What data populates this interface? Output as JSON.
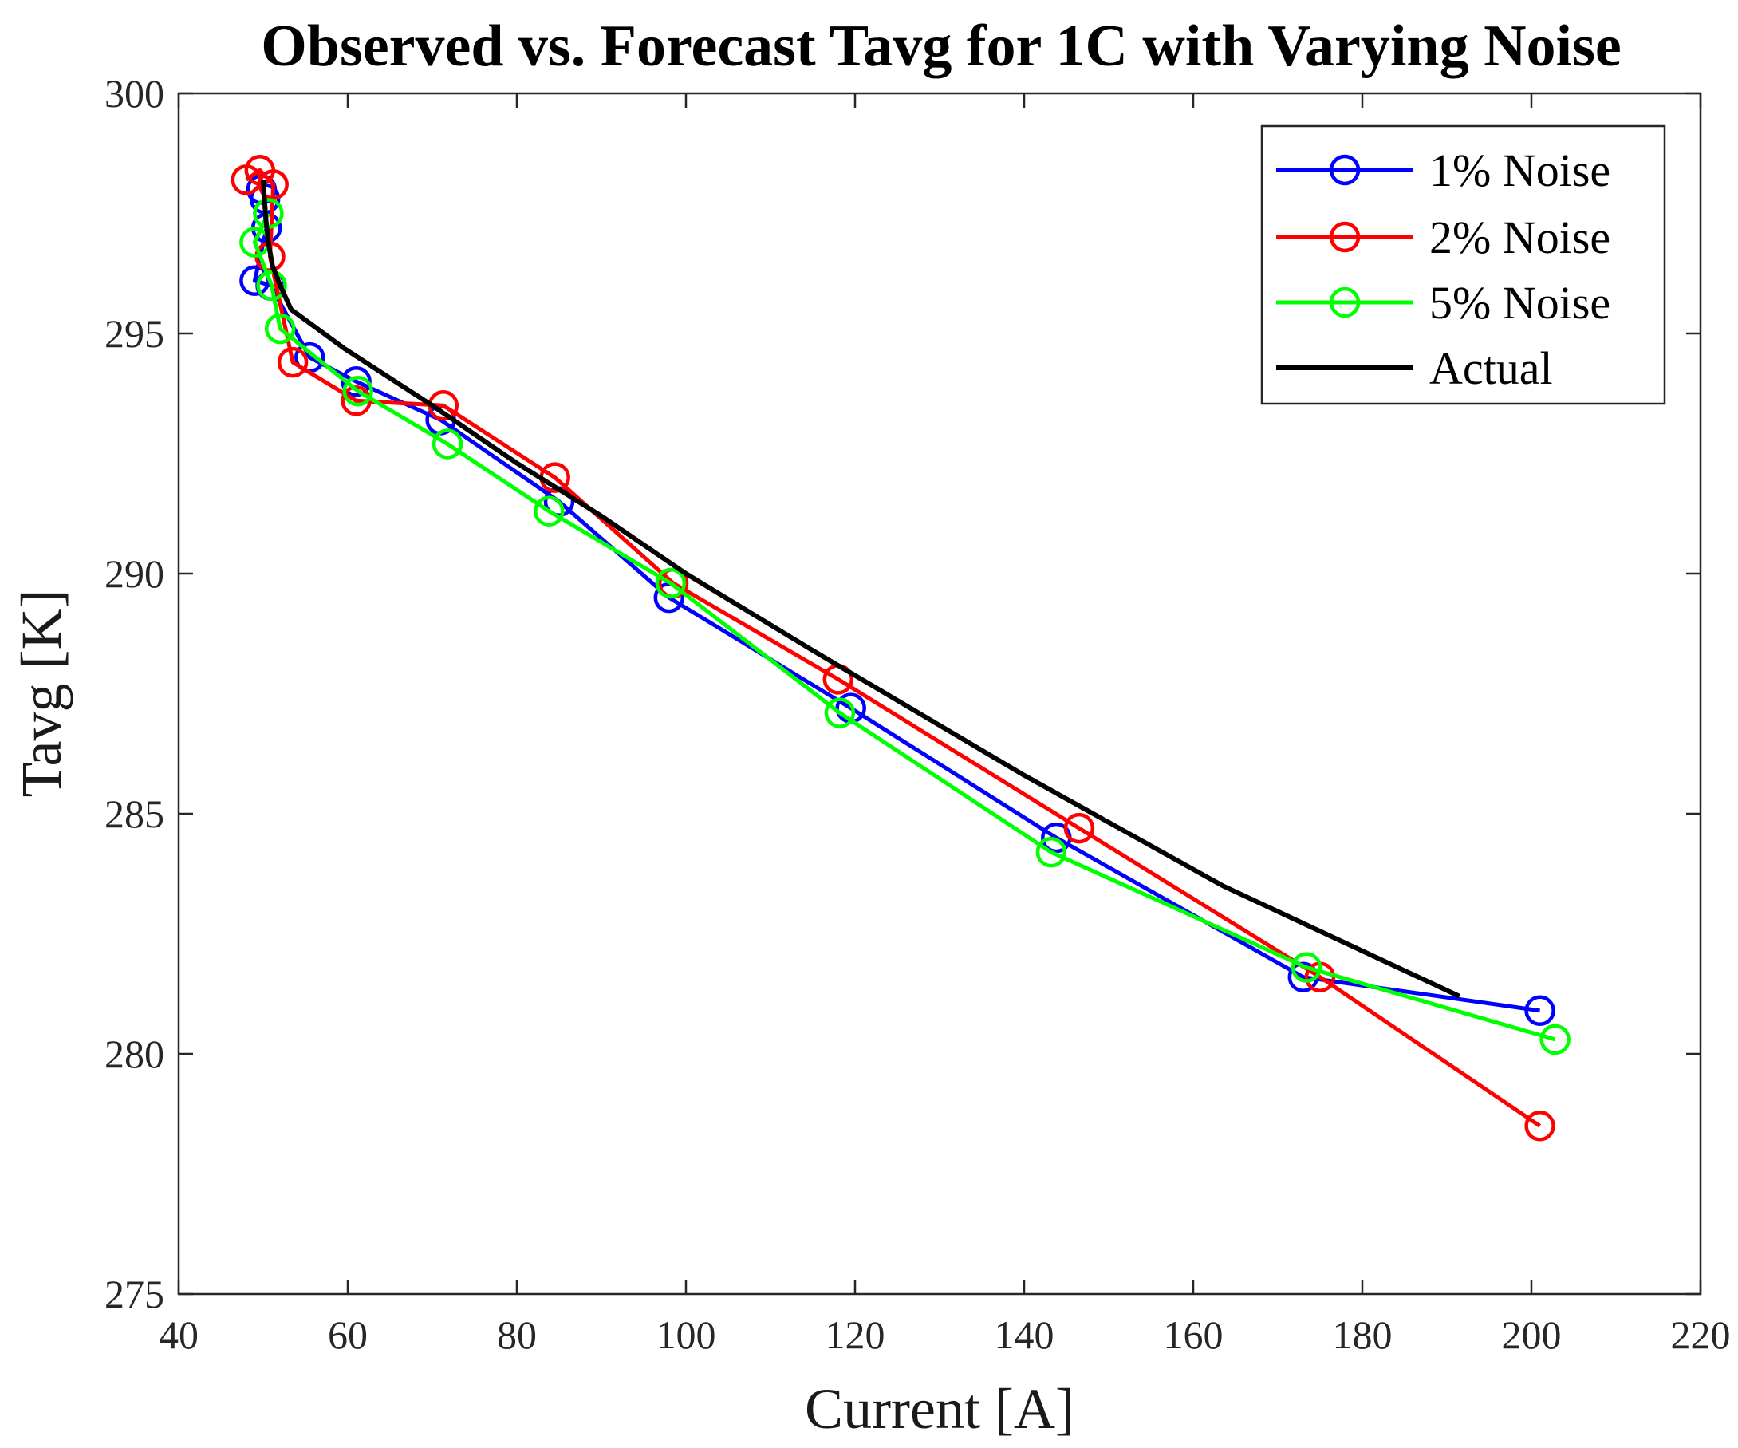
{
  "chart_data": {
    "type": "line",
    "title": "Observed vs. Forecast Tavg for 1C with Varying Noise",
    "xlabel": "Current [A]",
    "ylabel": "Tavg [K]",
    "xlim": [
      40,
      220
    ],
    "ylim": [
      275,
      300
    ],
    "xticks": [
      40,
      60,
      80,
      100,
      120,
      140,
      160,
      180,
      200,
      220
    ],
    "yticks": [
      275,
      280,
      285,
      290,
      295,
      300
    ],
    "legend_position": "top-right",
    "series": [
      {
        "name": "1% Noise",
        "color": "#0000ff",
        "marker": "circle",
        "x": [
          49.8,
          50.2,
          50.4,
          49.0,
          50.9,
          55.5,
          61.0,
          71.0,
          85.0,
          98.0,
          119.5,
          143.8,
          173.0,
          201.0
        ],
        "y": [
          298.0,
          297.8,
          297.2,
          296.1,
          296.0,
          294.5,
          294.0,
          293.2,
          291.5,
          289.5,
          287.2,
          284.5,
          281.6,
          280.9
        ]
      },
      {
        "name": "2% Noise",
        "color": "#ff0000",
        "marker": "circle",
        "x": [
          48.0,
          49.6,
          51.2,
          50.8,
          53.5,
          61.0,
          71.3,
          84.5,
          98.5,
          118.0,
          146.5,
          175.0,
          201.0
        ],
        "y": [
          298.2,
          298.4,
          298.1,
          296.6,
          294.4,
          293.6,
          293.5,
          292.0,
          289.8,
          287.8,
          284.7,
          281.6,
          278.5
        ]
      },
      {
        "name": "5% Noise",
        "color": "#00ff00",
        "marker": "circle",
        "x": [
          50.6,
          49.0,
          51.0,
          52.0,
          61.2,
          71.8,
          83.8,
          98.2,
          118.2,
          143.2,
          173.4,
          202.8
        ],
        "y": [
          297.5,
          296.9,
          296.0,
          295.1,
          293.8,
          292.7,
          291.3,
          289.8,
          287.1,
          284.2,
          281.8,
          280.3
        ]
      },
      {
        "name": "Actual",
        "color": "#000000",
        "marker": "none",
        "x": [
          50.0,
          50.1,
          50.3,
          50.6,
          51.1,
          52.0,
          53.3,
          59.5,
          70.0,
          80.0,
          90.0,
          100.0,
          115.0,
          140.0,
          163.5,
          191.5
        ],
        "y": [
          298.2,
          297.9,
          297.4,
          296.9,
          296.4,
          296.0,
          295.5,
          294.7,
          293.5,
          292.3,
          291.2,
          290.0,
          288.4,
          285.8,
          283.5,
          281.2
        ]
      }
    ]
  }
}
